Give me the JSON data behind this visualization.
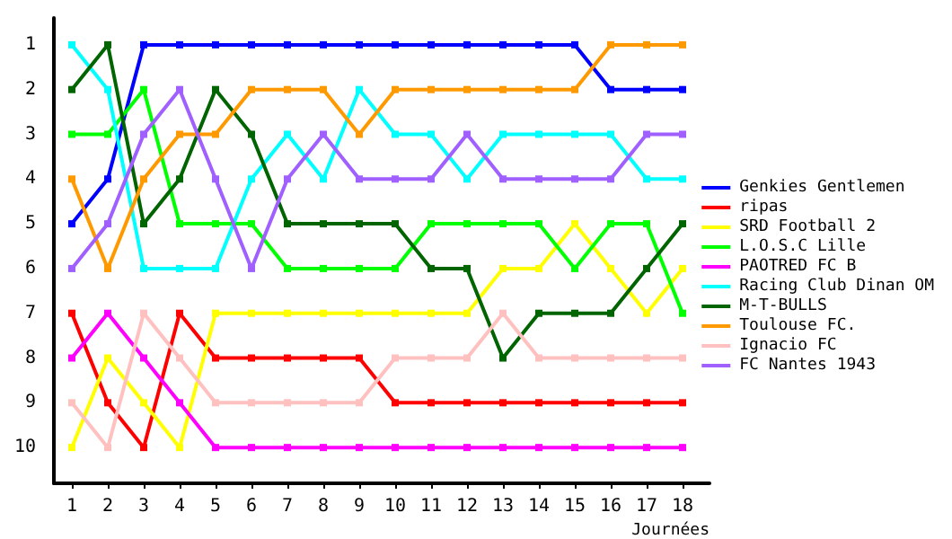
{
  "chart_data": {
    "type": "line",
    "xlabel": "Journées",
    "x": [
      1,
      2,
      3,
      4,
      5,
      6,
      7,
      8,
      9,
      10,
      11,
      12,
      13,
      14,
      15,
      16,
      17,
      18
    ],
    "xlim": [
      0.5,
      18.75
    ],
    "xticks": [
      1,
      2,
      3,
      4,
      5,
      6,
      7,
      8,
      9,
      10,
      11,
      12,
      13,
      14,
      15,
      16,
      17,
      18
    ],
    "ylim": [
      10.8,
      0.4
    ],
    "yticks": [
      1,
      2,
      3,
      4,
      5,
      6,
      7,
      8,
      9,
      10
    ],
    "grid": false,
    "legend": "right",
    "marker": "square",
    "line_style": "solid",
    "series": [
      {
        "name": "Genkies Gentlemen",
        "color": "#0000ff",
        "values": [
          5,
          4,
          1,
          1,
          1,
          1,
          1,
          1,
          1,
          1,
          1,
          1,
          1,
          1,
          1,
          2,
          2,
          2
        ]
      },
      {
        "name": "ripas",
        "color": "#ff0000",
        "values": [
          7,
          9,
          10,
          7,
          8,
          8,
          8,
          8,
          8,
          9,
          9,
          9,
          9,
          9,
          9,
          9,
          9,
          9
        ]
      },
      {
        "name": "SRD Football 2",
        "color": "#ffff00",
        "values": [
          10,
          8,
          9,
          10,
          7,
          7,
          7,
          7,
          7,
          7,
          7,
          7,
          6,
          6,
          5,
          6,
          7,
          6
        ]
      },
      {
        "name": "L.O.S.C Lille",
        "color": "#00ff00",
        "values": [
          3,
          3,
          2,
          5,
          5,
          5,
          6,
          6,
          6,
          6,
          5,
          5,
          5,
          5,
          6,
          5,
          5,
          7
        ]
      },
      {
        "name": "PAOTRED FC B",
        "color": "#ff00ff",
        "values": [
          8,
          7,
          8,
          9,
          10,
          10,
          10,
          10,
          10,
          10,
          10,
          10,
          10,
          10,
          10,
          10,
          10,
          10
        ]
      },
      {
        "name": "Racing Club Dinan OM",
        "color": "#00ffff",
        "values": [
          1,
          2,
          6,
          6,
          6,
          4,
          3,
          4,
          2,
          3,
          3,
          4,
          3,
          3,
          3,
          3,
          4,
          4
        ]
      },
      {
        "name": "M-T-BULLS",
        "color": "#006400",
        "values": [
          2,
          1,
          5,
          4,
          2,
          3,
          5,
          5,
          5,
          5,
          6,
          6,
          8,
          7,
          7,
          7,
          6,
          5
        ]
      },
      {
        "name": "Toulouse FC.",
        "color": "#ff9900",
        "values": [
          4,
          6,
          4,
          3,
          3,
          2,
          2,
          2,
          3,
          2,
          2,
          2,
          2,
          2,
          2,
          1,
          1,
          1
        ]
      },
      {
        "name": "Ignacio FC",
        "color": "#ffc0c0",
        "values": [
          9,
          10,
          7,
          8,
          9,
          9,
          9,
          9,
          9,
          8,
          8,
          8,
          7,
          8,
          8,
          8,
          8,
          8
        ]
      },
      {
        "name": "FC Nantes 1943",
        "color": "#a060ff",
        "values": [
          6,
          5,
          3,
          2,
          4,
          6,
          4,
          3,
          4,
          4,
          4,
          3,
          4,
          4,
          4,
          4,
          3,
          3
        ]
      }
    ]
  }
}
